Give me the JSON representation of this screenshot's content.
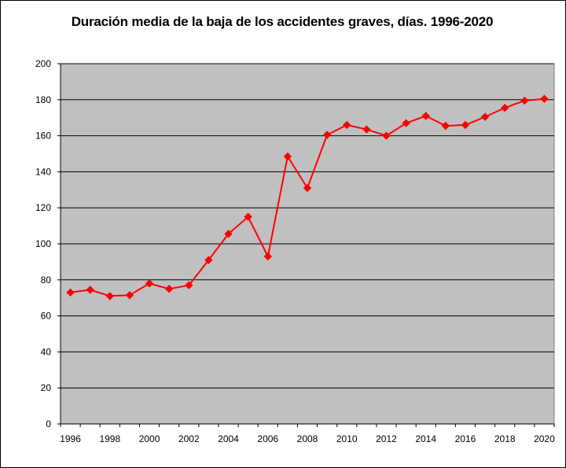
{
  "chart_data": {
    "type": "line",
    "title": "Duración media de la baja de los accidentes graves, días. 1996-2020",
    "xlabel": "",
    "ylabel": "",
    "x": [
      1996,
      1997,
      1998,
      1999,
      2000,
      2001,
      2002,
      2003,
      2004,
      2005,
      2006,
      2007,
      2008,
      2009,
      2010,
      2011,
      2012,
      2013,
      2014,
      2015,
      2016,
      2017,
      2018,
      2019,
      2020
    ],
    "series": [
      {
        "values": [
          73,
          74.5,
          71,
          71.5,
          78,
          75,
          77,
          91,
          105.5,
          115,
          93,
          148.5,
          131,
          160.5,
          166,
          163.5,
          160,
          167,
          171,
          165.5,
          166,
          170.5,
          175.5,
          179.5,
          180.5
        ]
      }
    ],
    "ylim": [
      0,
      200
    ],
    "yticks": [
      0,
      20,
      40,
      60,
      80,
      100,
      120,
      140,
      160,
      180,
      200
    ],
    "xticks": [
      1996,
      1998,
      2000,
      2002,
      2004,
      2006,
      2008,
      2010,
      2012,
      2014,
      2016,
      2018,
      2020
    ],
    "grid": true,
    "legend": "none",
    "colors": {
      "line": "#ff0000",
      "plot_background": "#c0c0c0",
      "gridline": "#000000"
    }
  }
}
